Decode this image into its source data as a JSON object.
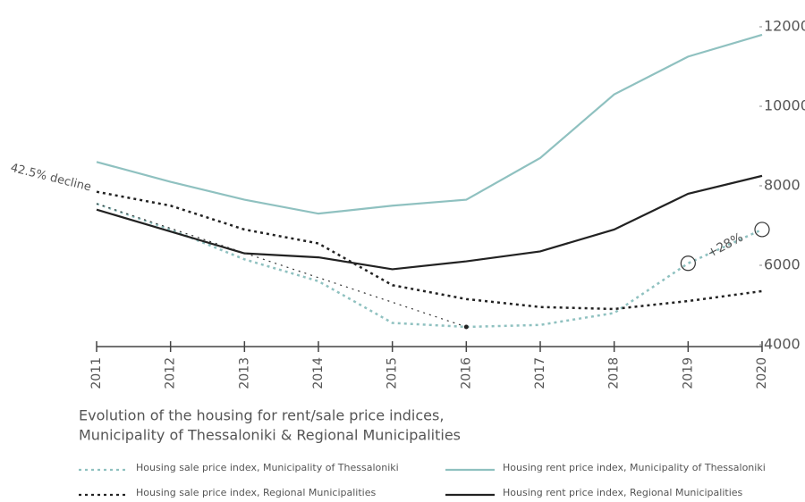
{
  "chart_data": {
    "type": "line",
    "title": [
      "Evolution of the housing for rent/sale price indices,",
      "Municipality of Thessaloniki & Regional Municipalities"
    ],
    "categories": [
      "2011",
      "2012",
      "2013",
      "2014",
      "2015",
      "2016",
      "2017",
      "2018",
      "2019",
      "2020"
    ],
    "series": [
      {
        "name": "Housing sale price index, Municipality of Thessaloniki",
        "color": "#8fc1c0",
        "dash": "dotted",
        "values": [
          7550,
          6900,
          6150,
          5600,
          4550,
          4450,
          4500,
          4800,
          6050,
          6900
        ]
      },
      {
        "name": "Housing sale price index, Regional Municipalities",
        "color": "#222222",
        "dash": "dotted",
        "values": [
          7850,
          7500,
          6900,
          6550,
          5500,
          5150,
          4950,
          4900,
          5100,
          5350
        ]
      },
      {
        "name": "Housing rent price index, Municipality of Thessaloniki",
        "color": "#8fc1c0",
        "dash": "solid",
        "values": [
          8600,
          8100,
          7650,
          7300,
          7500,
          7650,
          8700,
          10300,
          11250,
          11800
        ]
      },
      {
        "name": "Housing rent price index, Regional Municipalities",
        "color": "#222222",
        "dash": "solid",
        "values": [
          7400,
          6850,
          6300,
          6200,
          5900,
          6100,
          6350,
          6900,
          7800,
          8250
        ]
      }
    ],
    "ylim": [
      4000,
      12000
    ],
    "yticks": [
      4000,
      6000,
      8000,
      10000,
      12000
    ],
    "annotations": [
      "42.5% decline",
      "+28%"
    ],
    "grid": false
  }
}
